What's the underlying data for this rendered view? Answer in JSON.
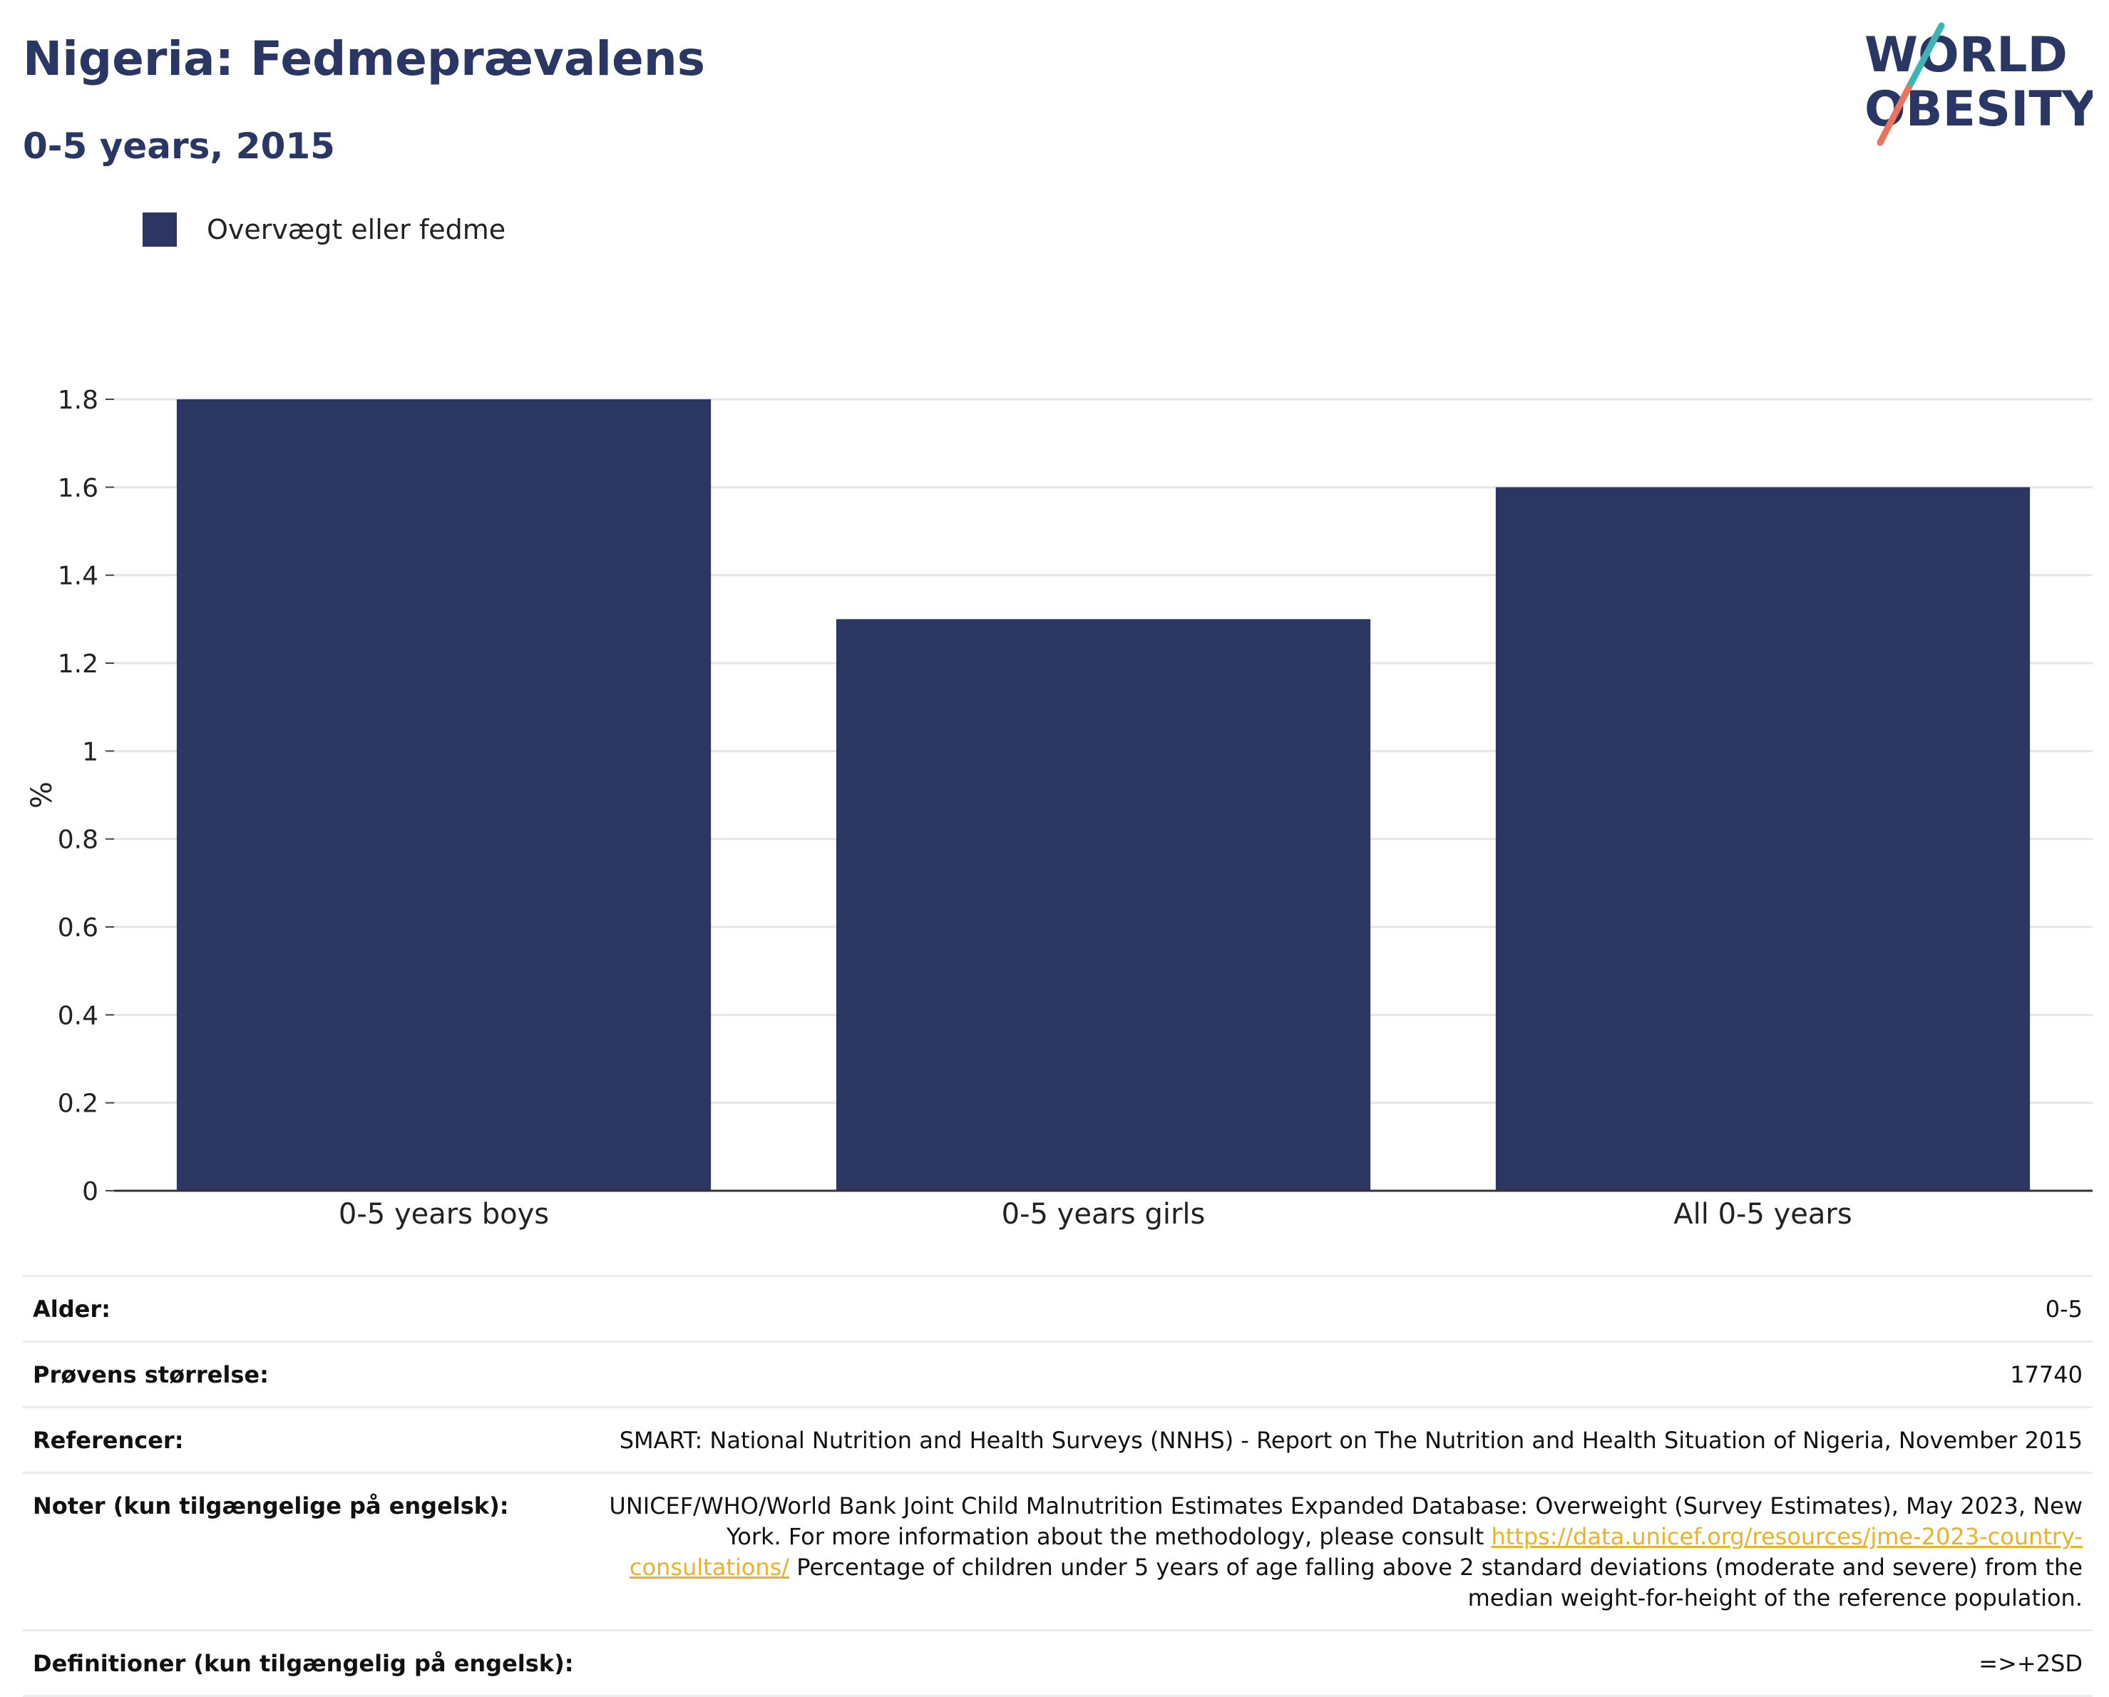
{
  "title": "Nigeria: Fedmeprævalens",
  "subtitle": "0-5 years, 2015",
  "logo": {
    "line1": "WORLD",
    "line2": "OBESITY"
  },
  "legend": {
    "label": "Overvægt eller fedme",
    "color": "#2b3663"
  },
  "chart_data": {
    "type": "bar",
    "categories": [
      "0-5 years boys",
      "0-5 years girls",
      "All 0-5 years"
    ],
    "series": [
      {
        "name": "Overvægt eller fedme",
        "values": [
          1.8,
          1.3,
          1.6
        ],
        "color": "#2b3663"
      }
    ],
    "ylabel": "%",
    "ylim": [
      0,
      1.8
    ],
    "yticks": [
      "0",
      "0.2",
      "0.4",
      "0.6",
      "0.8",
      "1",
      "1.2",
      "1.4",
      "1.6",
      "1.8"
    ],
    "grid": true,
    "legend_position": "top-left"
  },
  "info": [
    {
      "key": "Alder:",
      "value": "0-5"
    },
    {
      "key": "Prøvens størrelse:",
      "value": "17740"
    },
    {
      "key": "Referencer:",
      "value": "SMART: National Nutrition and Health Surveys (NNHS) - Report on The Nutrition and Health Situation of Nigeria, November 2015"
    },
    {
      "key": "Noter (kun tilgængelige på engelsk):",
      "value_pre": "UNICEF/WHO/World Bank Joint Child Malnutrition Estimates Expanded Database: Overweight (Survey Estimates), May 2023, New York. For more information about the methodology, please consult ",
      "link": "https://data.unicef.org/resources/jme-2023-country-consultations/",
      "value_post": " Percentage of children under 5 years of age falling above 2 standard deviations (moderate and severe) from the median weight-for-height of the reference population."
    },
    {
      "key": "Definitioner (kun tilgængelig på engelsk):",
      "value": "=>+2SD"
    }
  ]
}
